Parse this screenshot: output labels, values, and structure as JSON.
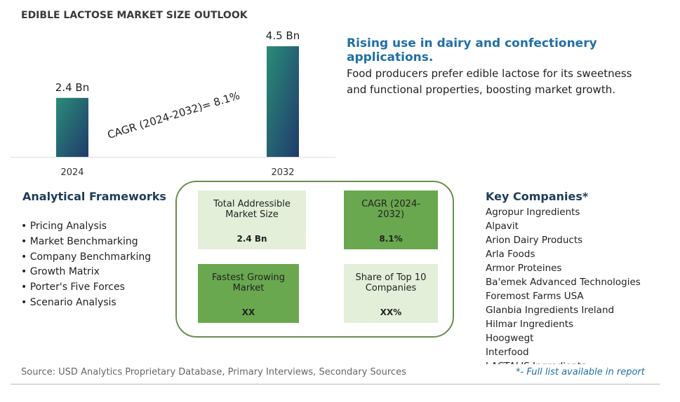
{
  "chart_data": {
    "type": "bar",
    "title": "EDIBLE LACTOSE MARKET SIZE OUTLOOK",
    "categories": [
      "2024",
      "2032"
    ],
    "values": [
      2.4,
      4.5
    ],
    "value_labels": [
      "2.4 Bn",
      "4.5 Bn"
    ],
    "annotation": "CAGR (2024-2032)=  8.1%"
  },
  "highlight": {
    "heading": "Rising use in dairy and confectionery applications.",
    "text": "Food producers prefer edible lactose for its sweetness and functional properties, boosting market growth."
  },
  "frameworks": {
    "title": "Analytical Frameworks",
    "items": [
      "Pricing Analysis",
      "Market Benchmarking",
      "Company Benchmarking",
      "Growth Matrix",
      "Porter's Five Forces",
      "Scenario Analysis"
    ]
  },
  "metrics": [
    {
      "label": "Total Addressible Market Size",
      "value": "2.4 Bn"
    },
    {
      "label": "CAGR (2024-2032)",
      "value": "8.1%"
    },
    {
      "label": "Fastest Growing Market",
      "value": "XX"
    },
    {
      "label": "Share of Top 10 Companies",
      "value": "XX%"
    }
  ],
  "companies": {
    "title": "Key Companies*",
    "items": [
      "Agropur Ingredients",
      "Alpavit",
      "Arion Dairy Products",
      "Arla Foods",
      "Armor Proteines",
      "Ba'emek Advanced Technologies",
      "Foremost Farms USA",
      "Glanbia Ingredients Ireland",
      "Hilmar Ingredients",
      "Hoogwegt",
      "Interfood",
      "LACTALIS Ingredients"
    ]
  },
  "footer": {
    "source": "Source: USD Analytics Proprietary Database, Primary Interviews, Secondary Sources",
    "note": "*- Full list available in report"
  }
}
